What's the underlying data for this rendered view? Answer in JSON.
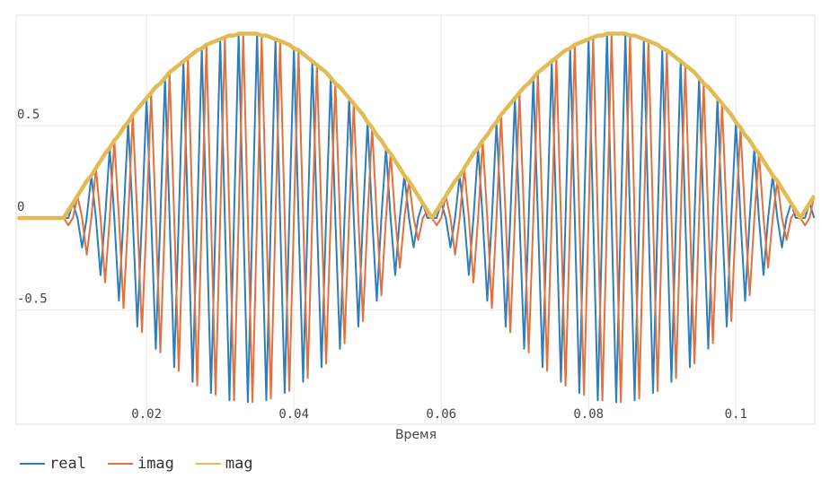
{
  "chart_data": {
    "type": "line",
    "x_label": "Время",
    "x": [
      0.0025,
      0.003125,
      0.00375,
      0.004375,
      0.005,
      0.005625,
      0.00625,
      0.006875,
      0.0075,
      0.008125,
      0.00875,
      0.009375,
      0.01,
      0.010625,
      0.01125,
      0.011875,
      0.0125,
      0.013125,
      0.01375,
      0.014375,
      0.015,
      0.015625,
      0.01625,
      0.016875,
      0.0175,
      0.018125,
      0.01875,
      0.019375,
      0.02,
      0.020625,
      0.02125,
      0.021875,
      0.0225,
      0.023125,
      0.02375,
      0.024375,
      0.025,
      0.025625,
      0.02625,
      0.026875,
      0.0275,
      0.028125,
      0.02875,
      0.029375,
      0.03,
      0.030625,
      0.03125,
      0.031875,
      0.0325,
      0.033125,
      0.03375,
      0.034375,
      0.035,
      0.035625,
      0.03625,
      0.036875,
      0.0375,
      0.038125,
      0.03875,
      0.039375,
      0.04,
      0.040625,
      0.04125,
      0.041875,
      0.0425,
      0.043125,
      0.04375,
      0.044375,
      0.045,
      0.045625,
      0.04625,
      0.046875,
      0.0475,
      0.048125,
      0.04875,
      0.049375,
      0.05,
      0.050625,
      0.05125,
      0.051875,
      0.0525,
      0.053125,
      0.05375,
      0.054375,
      0.055,
      0.055625,
      0.05625,
      0.056875,
      0.0575,
      0.058125,
      0.05875,
      0.059375,
      0.06,
      0.060625,
      0.06125,
      0.061875,
      0.0625,
      0.063125,
      0.06375,
      0.064375,
      0.065,
      0.065625,
      0.06625,
      0.066875,
      0.0675,
      0.068125,
      0.06875,
      0.069375,
      0.07,
      0.070625,
      0.07125,
      0.071875,
      0.0725,
      0.073125,
      0.07375,
      0.074375,
      0.075,
      0.075625,
      0.07625,
      0.076875,
      0.0775,
      0.078125,
      0.07875,
      0.079375,
      0.08,
      0.080625,
      0.08125,
      0.081875,
      0.0825,
      0.083125,
      0.08375,
      0.084375,
      0.085,
      0.085625,
      0.08625,
      0.086875,
      0.0875,
      0.088125,
      0.08875,
      0.089375,
      0.09,
      0.090625,
      0.09125,
      0.091875,
      0.0925,
      0.093125,
      0.09375,
      0.094375,
      0.095,
      0.095625,
      0.09625,
      0.096875,
      0.0975,
      0.098125,
      0.09875,
      0.099375,
      0.1,
      0.100625,
      0.10125,
      0.101875,
      0.1025,
      0.103125,
      0.10375,
      0.104375,
      0.105,
      0.105625,
      0.10625,
      0.106875,
      0.1075,
      0.108125,
      0.10875,
      0.109375,
      0.11,
      0.110625
    ],
    "series": [
      {
        "name": "real",
        "color": "#2f7dbb",
        "width": 2,
        "values": [
          0,
          0,
          0,
          0,
          0,
          0,
          0,
          0,
          0,
          0,
          0,
          0,
          0.08,
          0,
          -0.16,
          0,
          0.23,
          0,
          -0.31,
          0,
          0.38,
          0,
          -0.45,
          0,
          0.52,
          0,
          -0.59,
          0,
          0.65,
          0,
          -0.71,
          0,
          0.76,
          0,
          -0.81,
          0,
          0.85,
          0,
          -0.89,
          0,
          0.92,
          0,
          -0.95,
          0,
          0.97,
          0,
          -0.99,
          0,
          1,
          0,
          -1,
          0,
          1,
          0,
          -0.99,
          0,
          0.97,
          0,
          -0.95,
          0,
          0.92,
          0,
          -0.89,
          0,
          0.85,
          0,
          -0.81,
          0,
          0.76,
          0,
          -0.71,
          0,
          0.65,
          0,
          -0.59,
          0,
          0.52,
          0,
          -0.45,
          0,
          0.38,
          0,
          -0.31,
          0,
          0.23,
          0,
          -0.16,
          0,
          0.08,
          0,
          0,
          0,
          0.08,
          0,
          -0.16,
          0,
          0.23,
          0,
          -0.31,
          0,
          0.38,
          0,
          -0.45,
          0,
          0.52,
          0,
          -0.59,
          0,
          0.65,
          0,
          -0.71,
          0,
          0.76,
          0,
          -0.81,
          0,
          0.85,
          0,
          -0.89,
          0,
          0.92,
          0,
          -0.95,
          0,
          0.97,
          0,
          -0.99,
          0,
          1,
          0,
          -1,
          0,
          1,
          0,
          -0.99,
          0,
          0.97,
          0,
          -0.95,
          0,
          0.92,
          0,
          -0.89,
          0,
          0.85,
          0,
          -0.81,
          0,
          0.76,
          0,
          -0.71,
          0,
          0.65,
          0,
          -0.59,
          0,
          0.52,
          0,
          -0.45,
          0,
          0.38,
          0,
          -0.31,
          0,
          0.23,
          0,
          -0.16,
          0,
          0.08,
          0,
          0,
          0,
          0.08,
          0
        ]
      },
      {
        "name": "imag",
        "color": "#e2713f",
        "width": 2,
        "values": [
          0,
          0,
          0,
          0,
          0,
          0,
          0,
          0,
          0,
          0,
          0,
          -0.04,
          0,
          0.12,
          0,
          -0.2,
          0,
          0.27,
          0,
          -0.35,
          0,
          0.42,
          0,
          -0.49,
          0,
          0.56,
          0,
          -0.62,
          0,
          0.68,
          0,
          -0.73,
          0,
          0.79,
          0,
          -0.83,
          0,
          0.87,
          0,
          -0.91,
          0,
          0.94,
          0,
          -0.96,
          0,
          0.98,
          0,
          -0.99,
          0,
          1,
          0,
          -1,
          0,
          0.99,
          0,
          -0.98,
          0,
          0.96,
          0,
          -0.94,
          0,
          0.91,
          0,
          -0.87,
          0,
          0.83,
          0,
          -0.79,
          0,
          0.73,
          0,
          -0.68,
          0,
          0.62,
          0,
          -0.56,
          0,
          0.49,
          0,
          -0.42,
          0,
          0.35,
          0,
          -0.27,
          0,
          0.2,
          0,
          -0.12,
          0,
          0.04,
          0,
          -0.04,
          0,
          0.12,
          0,
          -0.2,
          0,
          0.27,
          0,
          -0.35,
          0,
          0.42,
          0,
          -0.49,
          0,
          0.56,
          0,
          -0.62,
          0,
          0.68,
          0,
          -0.73,
          0,
          0.79,
          0,
          -0.83,
          0,
          0.87,
          0,
          -0.91,
          0,
          0.94,
          0,
          -0.96,
          0,
          0.98,
          0,
          -0.99,
          0,
          1,
          0,
          -1,
          0,
          0.99,
          0,
          -0.98,
          0,
          0.96,
          0,
          -0.94,
          0,
          0.91,
          0,
          -0.87,
          0,
          0.83,
          0,
          -0.79,
          0,
          0.73,
          0,
          -0.68,
          0,
          0.62,
          0,
          -0.56,
          0,
          0.49,
          0,
          -0.42,
          0,
          0.35,
          0,
          -0.27,
          0,
          0.2,
          0,
          -0.12,
          0,
          0.04,
          0,
          -0.04,
          0,
          0.12
        ]
      },
      {
        "name": "mag",
        "color": "#e2bb55",
        "width": 4.5,
        "values": [
          0,
          0,
          0,
          0,
          0,
          0,
          0,
          0,
          0,
          0,
          0,
          0.04,
          0.08,
          0.12,
          0.16,
          0.2,
          0.23,
          0.27,
          0.31,
          0.35,
          0.38,
          0.42,
          0.45,
          0.49,
          0.52,
          0.56,
          0.59,
          0.62,
          0.65,
          0.68,
          0.71,
          0.73,
          0.76,
          0.79,
          0.81,
          0.83,
          0.85,
          0.87,
          0.89,
          0.91,
          0.92,
          0.94,
          0.95,
          0.96,
          0.97,
          0.98,
          0.99,
          0.99,
          1,
          1,
          1,
          1,
          1,
          0.99,
          0.99,
          0.98,
          0.97,
          0.96,
          0.95,
          0.94,
          0.92,
          0.91,
          0.89,
          0.87,
          0.85,
          0.83,
          0.81,
          0.79,
          0.76,
          0.73,
          0.71,
          0.68,
          0.65,
          0.62,
          0.59,
          0.56,
          0.52,
          0.49,
          0.45,
          0.42,
          0.38,
          0.35,
          0.31,
          0.27,
          0.23,
          0.2,
          0.16,
          0.12,
          0.08,
          0.04,
          0,
          0.04,
          0.08,
          0.12,
          0.16,
          0.2,
          0.23,
          0.27,
          0.31,
          0.35,
          0.38,
          0.42,
          0.45,
          0.49,
          0.52,
          0.56,
          0.59,
          0.62,
          0.65,
          0.68,
          0.71,
          0.73,
          0.76,
          0.79,
          0.81,
          0.83,
          0.85,
          0.87,
          0.89,
          0.91,
          0.92,
          0.94,
          0.95,
          0.96,
          0.97,
          0.98,
          0.99,
          0.99,
          1,
          1,
          1,
          1,
          1,
          0.99,
          0.99,
          0.98,
          0.97,
          0.96,
          0.95,
          0.94,
          0.92,
          0.91,
          0.89,
          0.87,
          0.85,
          0.83,
          0.81,
          0.79,
          0.76,
          0.73,
          0.71,
          0.68,
          0.65,
          0.62,
          0.59,
          0.56,
          0.52,
          0.49,
          0.45,
          0.42,
          0.38,
          0.35,
          0.31,
          0.27,
          0.23,
          0.2,
          0.16,
          0.12,
          0.08,
          0.04,
          0,
          0.04,
          0.08,
          0.12
        ]
      }
    ],
    "xlim": [
      0.0023,
      0.1107
    ],
    "xticks": [
      0.02,
      0.04,
      0.06,
      0.08,
      0.1
    ],
    "ylim": [
      -1.12,
      1.1
    ],
    "yticks": [
      -0.5,
      0,
      0.5
    ],
    "grid": true,
    "legend": "bottom-left"
  }
}
